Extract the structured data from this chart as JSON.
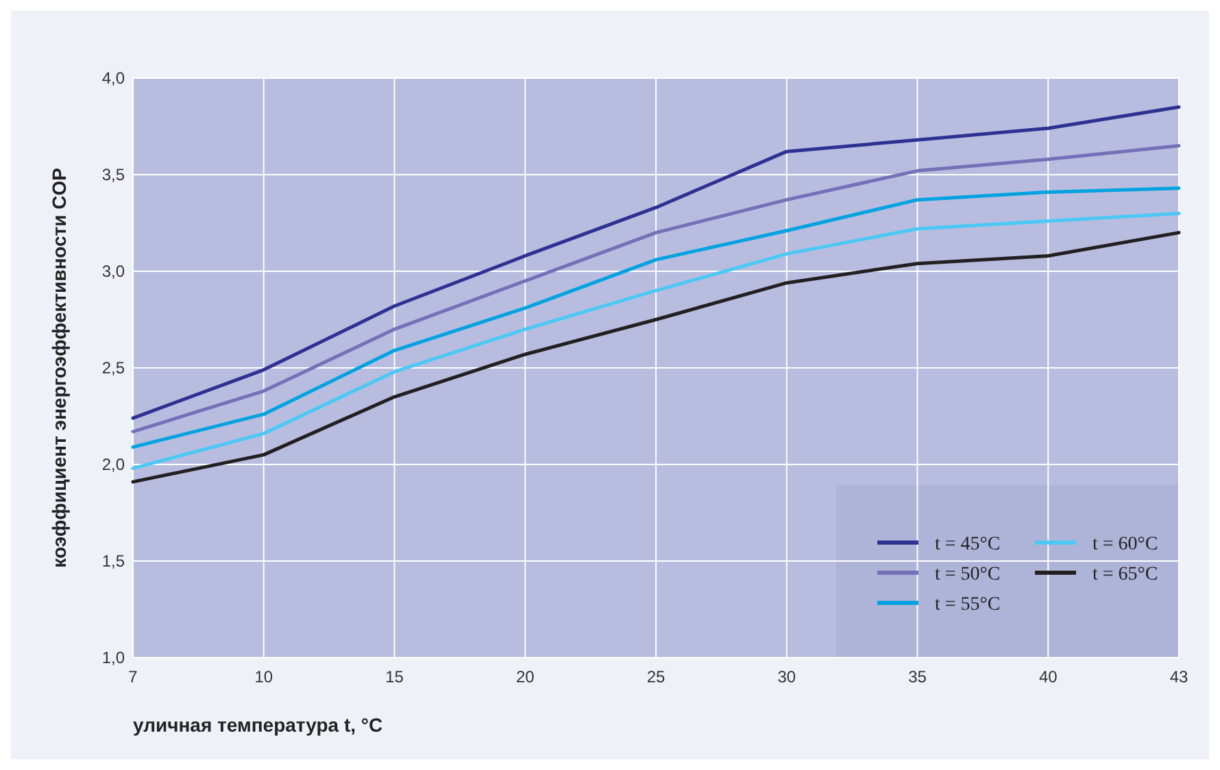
{
  "chart_data": {
    "type": "line",
    "xlabel": "уличная температура t, °C",
    "ylabel": "коэффициент энергоэффективности COP",
    "categories": [
      "7",
      "10",
      "15",
      "20",
      "25",
      "30",
      "35",
      "40",
      "43"
    ],
    "ylim": [
      1,
      4
    ],
    "yticks": [
      {
        "value": 1,
        "label": "1,0"
      },
      {
        "value": 1.5,
        "label": "1,5"
      },
      {
        "value": 2,
        "label": "2,0"
      },
      {
        "value": 2.5,
        "label": "2,5"
      },
      {
        "value": 3,
        "label": "3,0"
      },
      {
        "value": 3.5,
        "label": "3,5"
      },
      {
        "value": 4,
        "label": "4,0"
      }
    ],
    "grid": true,
    "legend": "bottom right",
    "marker": "none",
    "line_style": "solid",
    "series": [
      {
        "name": "t = 45°C",
        "color": "#2e3192",
        "values": [
          2.24,
          2.49,
          2.82,
          3.08,
          3.33,
          3.62,
          3.68,
          3.74,
          3.85
        ]
      },
      {
        "name": "t = 50°C",
        "color": "#7670b8",
        "values": [
          2.17,
          2.38,
          2.7,
          2.95,
          3.2,
          3.37,
          3.52,
          3.58,
          3.65
        ]
      },
      {
        "name": "t = 55°C",
        "color": "#00a3e0",
        "values": [
          2.09,
          2.26,
          2.59,
          2.81,
          3.06,
          3.21,
          3.37,
          3.41,
          3.43
        ]
      },
      {
        "name": "t = 60°C",
        "color": "#4cc8f4",
        "values": [
          1.98,
          2.16,
          2.48,
          2.7,
          2.9,
          3.09,
          3.22,
          3.26,
          3.3
        ]
      },
      {
        "name": "t = 65°C",
        "color": "#231f20",
        "values": [
          1.91,
          2.05,
          2.35,
          2.57,
          2.75,
          2.94,
          3.04,
          3.08,
          3.2
        ]
      }
    ]
  }
}
